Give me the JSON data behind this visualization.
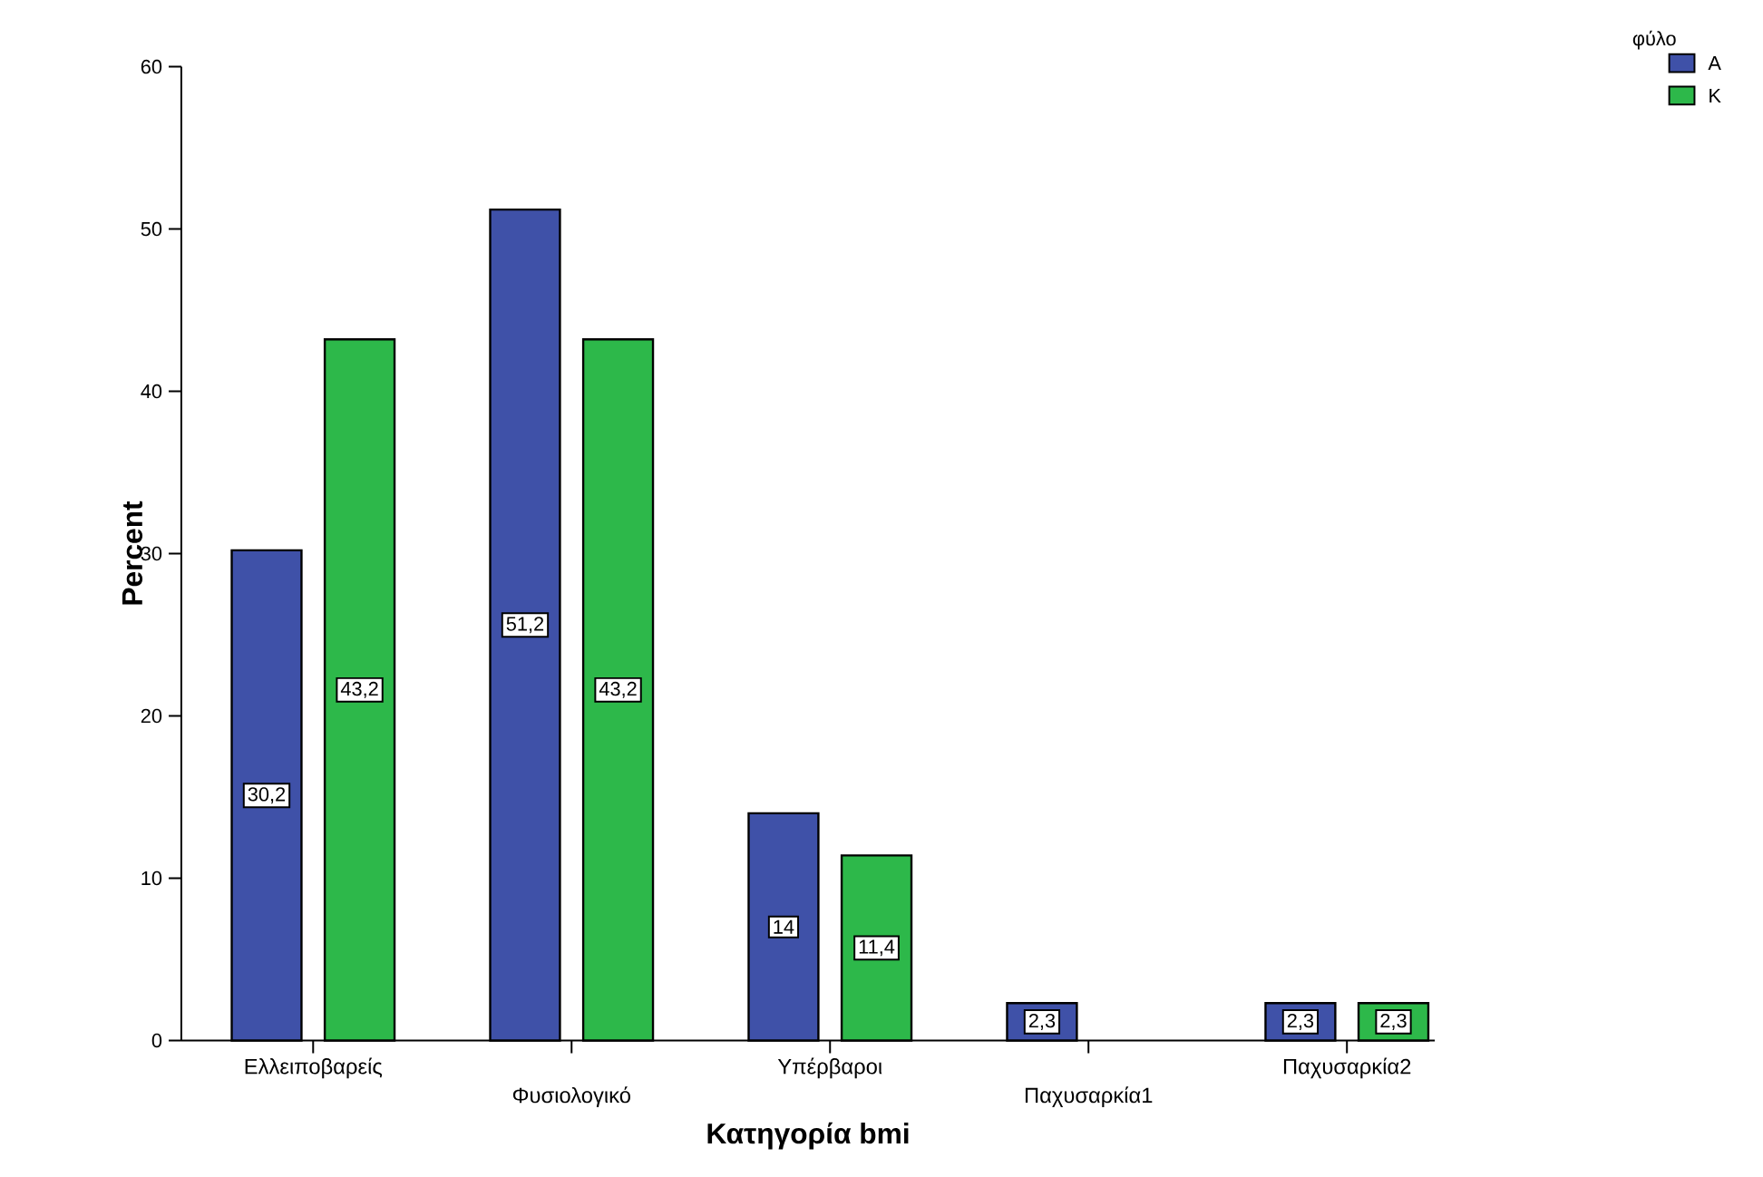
{
  "chart_data": {
    "type": "bar",
    "xlabel": "Κατηγορία bmi",
    "ylabel": "Percent",
    "legend_title": "φύλο",
    "categories": [
      "Ελλειποβαρείς",
      "Φυσιολογικό",
      "Υπέρβαροι",
      "Παχυσαρκία1",
      "Παχυσαρκία2"
    ],
    "series": [
      {
        "name": "Α",
        "color": "#3f51a8",
        "values": [
          30.2,
          51.2,
          14,
          2.3,
          2.3
        ],
        "value_labels": [
          "30,2",
          "51,2",
          "14",
          "2,3",
          "2,3"
        ]
      },
      {
        "name": "Κ",
        "color": "#2db84a",
        "values": [
          43.2,
          43.2,
          11.4,
          null,
          2.3
        ],
        "value_labels": [
          "43,2",
          "43,2",
          "11,4",
          null,
          "2,3"
        ]
      }
    ],
    "ylim": [
      0,
      60
    ],
    "yticks": [
      0,
      10,
      20,
      30,
      40,
      50,
      60
    ],
    "grid": false,
    "legend": "top right"
  }
}
